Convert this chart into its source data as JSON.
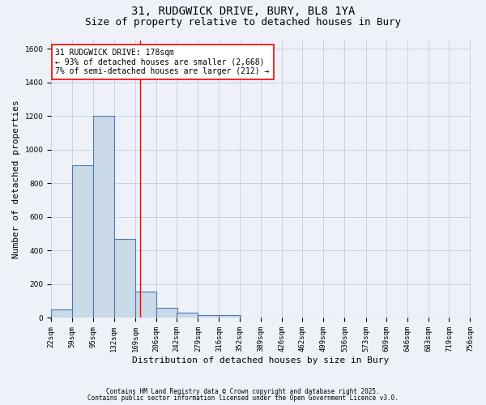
{
  "title": "31, RUDGWICK DRIVE, BURY, BL8 1YA",
  "subtitle": "Size of property relative to detached houses in Bury",
  "xlabel": "Distribution of detached houses by size in Bury",
  "ylabel": "Number of detached properties",
  "bin_edges": [
    22,
    59,
    95,
    132,
    169,
    206,
    242,
    279,
    316,
    352,
    389,
    426,
    462,
    499,
    536,
    573,
    609,
    646,
    683,
    719,
    756
  ],
  "bar_heights": [
    50,
    910,
    1200,
    470,
    155,
    60,
    30,
    15,
    15,
    0,
    0,
    0,
    0,
    0,
    0,
    0,
    0,
    0,
    0,
    0
  ],
  "bar_color": "#c9d9e8",
  "bar_edge_color": "#4a7ab5",
  "bar_edge_width": 0.8,
  "grid_color": "#c8d0e0",
  "background_color": "#eef2f8",
  "red_line_x": 178,
  "annotation_text": "31 RUDGWICK DRIVE: 178sqm\n← 93% of detached houses are smaller (2,668)\n7% of semi-detached houses are larger (212) →",
  "annotation_box_color": "white",
  "annotation_box_edge_color": "red",
  "ylim": [
    0,
    1650
  ],
  "yticks": [
    0,
    200,
    400,
    600,
    800,
    1000,
    1200,
    1400,
    1600
  ],
  "footnote1": "Contains HM Land Registry data © Crown copyright and database right 2025.",
  "footnote2": "Contains public sector information licensed under the Open Government Licence v3.0.",
  "title_fontsize": 10,
  "subtitle_fontsize": 9,
  "tick_fontsize": 6.5,
  "ylabel_fontsize": 8,
  "xlabel_fontsize": 8,
  "annotation_fontsize": 7,
  "footnote_fontsize": 5.5
}
